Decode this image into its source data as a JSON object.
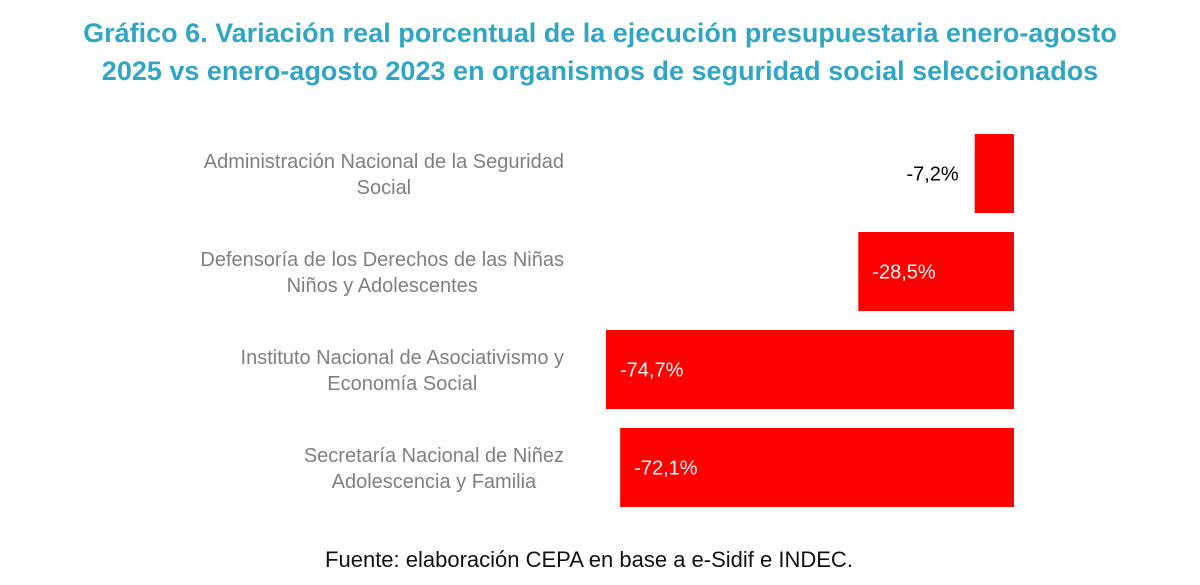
{
  "title": {
    "line1": "Gráfico 6. Variación real porcentual de la ejecución presupuestaria enero-agosto",
    "line2": "2025 vs enero-agosto 2023 en organismos de seguridad social seleccionados"
  },
  "source": "Fuente: elaboración CEPA en base a e-Sidif e INDEC.",
  "colors": {
    "bar": "#ff0000",
    "title": "#31a5c4",
    "category_label": "#7f7f7f",
    "label_inside": "#ffffff",
    "label_outside": "#000000"
  },
  "chart_data": {
    "type": "bar",
    "orientation": "horizontal",
    "categories": [
      [
        "Administración Nacional de la Seguridad",
        "Social"
      ],
      [
        "Defensoría de los Derechos de las Niñas",
        "Niños y Adolescentes"
      ],
      [
        "Instituto Nacional de Asociativismo y",
        "Economía Social"
      ],
      [
        "Secretaría Nacional de Niñez",
        "Adolescencia y Familia"
      ]
    ],
    "values": [
      -7.2,
      -28.5,
      -74.7,
      -72.1
    ],
    "value_labels": [
      "-7,2%",
      "-28,5%",
      "-74,7%",
      "-72,1%"
    ],
    "xlim": [
      -75,
      0
    ],
    "unit": "%",
    "grid": false,
    "legend": "none"
  }
}
